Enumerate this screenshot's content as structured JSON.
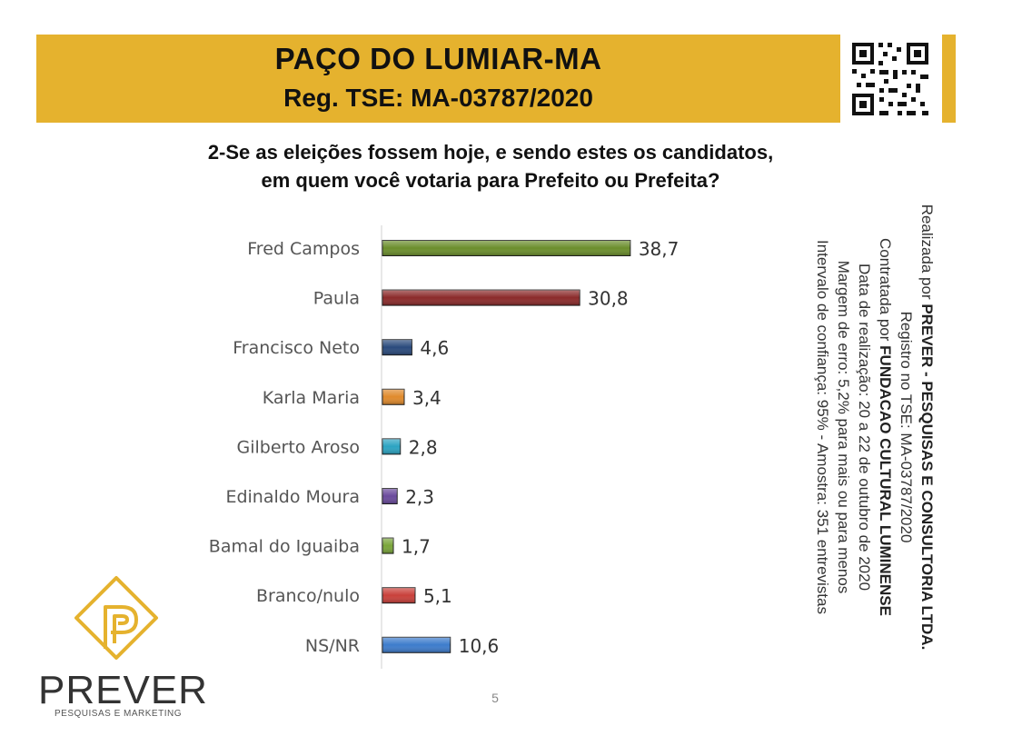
{
  "header": {
    "title": "PAÇO DO LUMIAR-MA",
    "registration": "Reg. TSE: MA-03787/2020"
  },
  "question": {
    "line1": "2-Se as eleições fossem hoje, e sendo estes os candidatos,",
    "line2": "em quem você votaria para Prefeito ou Prefeita?"
  },
  "side_info": {
    "line1_prefix": "Realizada por ",
    "line1_bold": "PREVER - PESQUISAS E CONSULTORIA LTDA.",
    "line2": "Registro no TSE: MA-03787/2020",
    "line3_prefix": "Contratada por ",
    "line3_bold": "FUNDACAO CULTURAL LUMINENSE",
    "line4": "Data de realização: 20 a 22 de outubro de 2020",
    "line5": "Margem de erro: 5,2% para mais ou para menos",
    "line6": "Intervalo de confiança: 95% - Amostra: 351 entrevistas"
  },
  "page_number": "5",
  "logo": {
    "word": "PREVER",
    "tagline": "PESQUISAS E MARKETING",
    "color": "#e5b22e"
  },
  "colors": {
    "banner": "#e5b22e"
  },
  "chart_data": {
    "type": "bar",
    "orientation": "horizontal",
    "categories": [
      "Fred Campos",
      "Paula",
      "Francisco Neto",
      "Karla Maria",
      "Gilberto Aroso",
      "Edinaldo Moura",
      "Bamal do Iguaiba",
      "Branco/nulo",
      "NS/NR"
    ],
    "values": [
      38.7,
      30.8,
      4.6,
      3.4,
      2.8,
      2.3,
      1.7,
      5.1,
      10.6
    ],
    "value_labels": [
      "38,7",
      "30,8",
      "4,6",
      "3,4",
      "2,8",
      "2,3",
      "1,7",
      "5,1",
      "10,6"
    ],
    "colors": [
      "#6b8e2c",
      "#8b2a2a",
      "#2a4a7c",
      "#e08a2c",
      "#2ba3c2",
      "#6a4a9c",
      "#7aa53a",
      "#c9403a",
      "#3d7ccc"
    ],
    "xlim": [
      0,
      100
    ],
    "grid": false,
    "legend": "none"
  }
}
